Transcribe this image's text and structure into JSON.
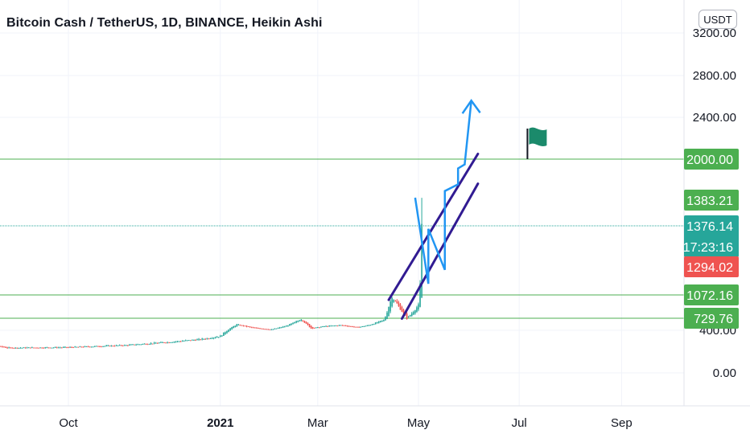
{
  "header": {
    "title": "Bitcoin Cash / TetherUS, 1D, BINANCE, Heikin Ashi",
    "currency": "USDT"
  },
  "colors": {
    "up": "#26a69a",
    "down": "#ef5350",
    "level": "#4caf50",
    "channel": "#311b92",
    "arrow": "#2196f3",
    "flag": "#1b8a6b",
    "tag_green": "#4caf50",
    "tag_teal": "#26a69a",
    "tag_red": "#ef5350"
  },
  "chart_data": {
    "type": "candlestick",
    "style": "Heikin Ashi",
    "x_ticks": [
      {
        "label": "Oct",
        "date": "2020-10-01",
        "bold": false
      },
      {
        "label": "2021",
        "date": "2021-01-01",
        "bold": true
      },
      {
        "label": "Mar",
        "date": "2021-03-01",
        "bold": false
      },
      {
        "label": "May",
        "date": "2021-05-01",
        "bold": false
      },
      {
        "label": "Jul",
        "date": "2021-07-01",
        "bold": false
      },
      {
        "label": "Sep",
        "date": "2021-09-01",
        "bold": false
      }
    ],
    "y_ticks": [
      "0.00",
      "400.00",
      "2400.00",
      "2800.00",
      "3200.00"
    ],
    "y_tick_values": [
      0,
      400,
      2400,
      2800,
      3200
    ],
    "horizontal_levels": [
      2000,
      1376.14,
      1072.16,
      729.76
    ],
    "price_labels": [
      {
        "text": "2000.00",
        "value": 2000,
        "color": "tag_green"
      },
      {
        "text": "1383.21",
        "value": 1383.21,
        "color": "tag_green"
      },
      {
        "text": "1376.14",
        "value": 1376.14,
        "color": "tag_teal",
        "sub": "17:23:16"
      },
      {
        "text": "1294.02",
        "value": 1294.02,
        "color": "tag_red"
      },
      {
        "text": "1072.16",
        "value": 1072.16,
        "color": "tag_green"
      },
      {
        "text": "729.76",
        "value": 729.76,
        "color": "tag_green"
      }
    ],
    "channel_upper": [
      {
        "date": "2021-04-13",
        "y": 1000
      },
      {
        "date": "2021-06-06",
        "y": 2050
      }
    ],
    "channel_lower": [
      {
        "date": "2021-04-21",
        "y": 720
      },
      {
        "date": "2021-06-06",
        "y": 1630
      }
    ],
    "projection_path": [
      {
        "date": "2021-04-29",
        "y": 1420
      },
      {
        "date": "2021-05-07",
        "y": 1160
      },
      {
        "date": "2021-05-07",
        "y": 1370
      },
      {
        "date": "2021-05-17",
        "y": 1270
      },
      {
        "date": "2021-05-17",
        "y": 1520
      },
      {
        "date": "2021-05-25",
        "y": 1620
      },
      {
        "date": "2021-05-25",
        "y": 1860
      },
      {
        "date": "2021-05-29",
        "y": 1920
      },
      {
        "date": "2021-05-29",
        "y": 1930
      },
      {
        "date": "2021-06-02",
        "y": 2560
      }
    ],
    "flag": {
      "date": "2021-07-06",
      "y": 2000
    },
    "candle_keypoints": [
      [
        "2020-08-01",
        300
      ],
      [
        "2020-08-25",
        235
      ],
      [
        "2020-10-01",
        240
      ],
      [
        "2020-11-05",
        260
      ],
      [
        "2020-12-01",
        290
      ],
      [
        "2020-12-20",
        315
      ],
      [
        "2021-01-01",
        345
      ],
      [
        "2021-01-05",
        400
      ],
      [
        "2021-01-11",
        560
      ],
      [
        "2021-01-20",
        470
      ],
      [
        "2021-02-01",
        420
      ],
      [
        "2021-02-10",
        520
      ],
      [
        "2021-02-19",
        700
      ],
      [
        "2021-02-25",
        450
      ],
      [
        "2021-03-05",
        510
      ],
      [
        "2021-03-15",
        540
      ],
      [
        "2021-03-25",
        480
      ],
      [
        "2021-04-01",
        540
      ],
      [
        "2021-04-10",
        680
      ],
      [
        "2021-04-15",
        1050
      ],
      [
        "2021-04-20",
        870
      ],
      [
        "2021-04-24",
        720
      ],
      [
        "2021-05-01",
        920
      ],
      [
        "2021-05-03",
        1376.14
      ]
    ]
  }
}
